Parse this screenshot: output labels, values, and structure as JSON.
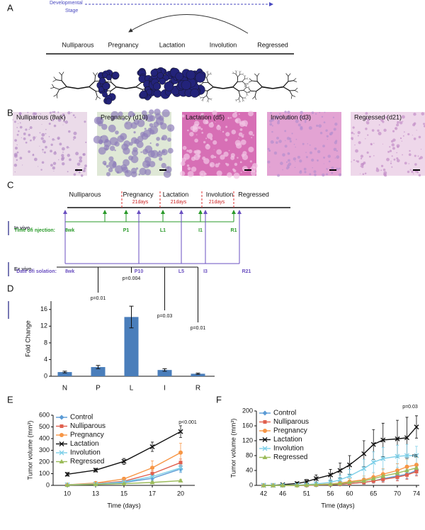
{
  "panel_labels": [
    "A",
    "B",
    "C",
    "D",
    "E",
    "F"
  ],
  "panel_a": {
    "axis_label_lines": [
      "Developmental",
      "Stage"
    ],
    "stages": [
      "Nulliparous",
      "Pregnancy",
      "Lactation",
      "Involution",
      "Regressed"
    ]
  },
  "panel_b": {
    "images": [
      "Nulliparous (8wk)",
      "Pregnancy (d10)",
      "Lactation (d5)",
      "Involution (d3)",
      "Regressed (d21)"
    ]
  },
  "panel_c": {
    "stages": [
      "Nulliparous",
      "Pregnancy",
      "Lactation",
      "Involution",
      "Regressed"
    ],
    "durations": [
      "21days",
      "21days",
      "21days"
    ],
    "in_vivo": "In vivo",
    "ex_vivo": "Ex vivo",
    "injection_label": "Time ofi njection:",
    "injection_points": [
      "8wk",
      "P1",
      "L1",
      "I1",
      "R1"
    ],
    "isolation_label": "Date ofi solation:",
    "isolation_points": [
      "8wk",
      "P10",
      "L5",
      "I3",
      "R21"
    ]
  },
  "chart_data": [
    {
      "type": "bar",
      "categories": [
        "N",
        "P",
        "L",
        "I",
        "R"
      ],
      "values": [
        1.0,
        2.2,
        14.2,
        1.5,
        0.6
      ],
      "errors": [
        0.2,
        0.4,
        2.6,
        0.3,
        0.15
      ],
      "color": "#4a7ebb",
      "ylabel": "Fold Change",
      "ylim": [
        0,
        18
      ],
      "yticks": [
        0,
        4,
        8,
        12,
        16
      ],
      "annotations": [
        "p=0.01",
        "p=0.004",
        "p=0.03",
        "p=0.01"
      ]
    },
    {
      "type": "line",
      "categories": [
        "10",
        "13",
        "15",
        "17",
        "20"
      ],
      "xlabel": "Time (days)",
      "ylabel": "Tumor volume (mm³)",
      "ylim": [
        0,
        600
      ],
      "yticks": [
        0,
        100,
        200,
        300,
        400,
        500,
        600
      ],
      "annotations": [
        "p<0.001"
      ],
      "series": [
        {
          "name": "Control",
          "color": "#5b9bd5",
          "marker": "diamond",
          "values": [
            5,
            10,
            25,
            60,
            140
          ],
          "errors": [
            2,
            3,
            8,
            20,
            30
          ]
        },
        {
          "name": "Nulliparous",
          "color": "#e0604e",
          "marker": "square",
          "values": [
            5,
            15,
            35,
            100,
            195
          ],
          "errors": [
            3,
            5,
            10,
            25,
            30
          ]
        },
        {
          "name": "Pregnancy",
          "color": "#f79646",
          "marker": "circle",
          "values": [
            5,
            20,
            55,
            150,
            280
          ],
          "errors": [
            5,
            5,
            15,
            60,
            80
          ]
        },
        {
          "name": "Lactation",
          "color": "#111111",
          "marker": "x",
          "values": [
            95,
            130,
            205,
            330,
            460
          ],
          "errors": [
            15,
            15,
            25,
            40,
            50
          ]
        },
        {
          "name": "Involution",
          "color": "#7dcfe8",
          "marker": "x",
          "values": [
            5,
            12,
            30,
            75,
            150
          ],
          "errors": [
            2,
            3,
            8,
            20,
            30
          ]
        },
        {
          "name": "Regressed",
          "color": "#9bbb59",
          "marker": "triangle",
          "values": [
            3,
            8,
            15,
            25,
            40
          ],
          "errors": [
            2,
            2,
            5,
            10,
            10
          ]
        }
      ]
    },
    {
      "type": "line",
      "x": [
        42,
        44,
        46,
        49,
        51,
        53,
        56,
        58,
        60,
        63,
        65,
        67,
        70,
        72,
        74
      ],
      "xlim": [
        40.5,
        74.6
      ],
      "xticks": [
        42,
        46,
        51,
        56,
        60,
        65,
        70,
        74
      ],
      "xlabel": "Time (days)",
      "ylabel": "Tumor volume (mm³)",
      "ylim": [
        0,
        200
      ],
      "yticks": [
        0,
        40,
        80,
        120,
        160,
        200
      ],
      "annotations": [
        "p=0.03",
        "ns"
      ],
      "series": [
        {
          "name": "Control",
          "color": "#5b9bd5",
          "marker": "diamond",
          "values": [
            0,
            0,
            0,
            0,
            0,
            1,
            2,
            3,
            5,
            8,
            12,
            18,
            25,
            30,
            40
          ],
          "errors": [
            0,
            0,
            0,
            0,
            1,
            1,
            2,
            3,
            4,
            5,
            6,
            8,
            10,
            12,
            12
          ]
        },
        {
          "name": "Nulliparous",
          "color": "#e0604e",
          "marker": "square",
          "values": [
            0,
            0,
            0,
            0,
            0,
            1,
            2,
            3,
            5,
            8,
            12,
            16,
            22,
            28,
            37
          ],
          "errors": [
            0,
            0,
            0,
            0,
            1,
            1,
            2,
            3,
            4,
            5,
            6,
            8,
            10,
            12,
            12
          ]
        },
        {
          "name": "Pregnancy",
          "color": "#f79646",
          "marker": "circle",
          "values": [
            0,
            0,
            0,
            0,
            1,
            2,
            4,
            6,
            10,
            15,
            22,
            30,
            40,
            50,
            55
          ],
          "errors": [
            0,
            0,
            0,
            1,
            1,
            2,
            3,
            5,
            8,
            10,
            12,
            15,
            18,
            20,
            20
          ]
        },
        {
          "name": "Lactation",
          "color": "#111111",
          "marker": "x",
          "values": [
            0,
            0,
            2,
            5,
            10,
            18,
            28,
            40,
            55,
            85,
            110,
            122,
            125,
            128,
            157
          ],
          "errors": [
            0,
            1,
            2,
            4,
            6,
            10,
            15,
            20,
            25,
            35,
            40,
            45,
            50,
            55,
            30
          ]
        },
        {
          "name": "Involution",
          "color": "#7dcfe8",
          "marker": "x",
          "values": [
            0,
            0,
            0,
            1,
            2,
            4,
            8,
            15,
            25,
            45,
            62,
            72,
            78,
            80,
            80
          ],
          "errors": [
            0,
            0,
            1,
            2,
            3,
            5,
            8,
            12,
            18,
            25,
            28,
            30,
            30,
            30,
            25
          ]
        },
        {
          "name": "Regressed",
          "color": "#9bbb59",
          "marker": "triangle",
          "values": [
            0,
            0,
            0,
            0,
            1,
            2,
            3,
            5,
            8,
            12,
            18,
            25,
            33,
            40,
            47
          ],
          "errors": [
            0,
            0,
            0,
            0,
            1,
            1,
            2,
            3,
            4,
            5,
            6,
            8,
            10,
            12,
            12
          ]
        }
      ]
    }
  ]
}
